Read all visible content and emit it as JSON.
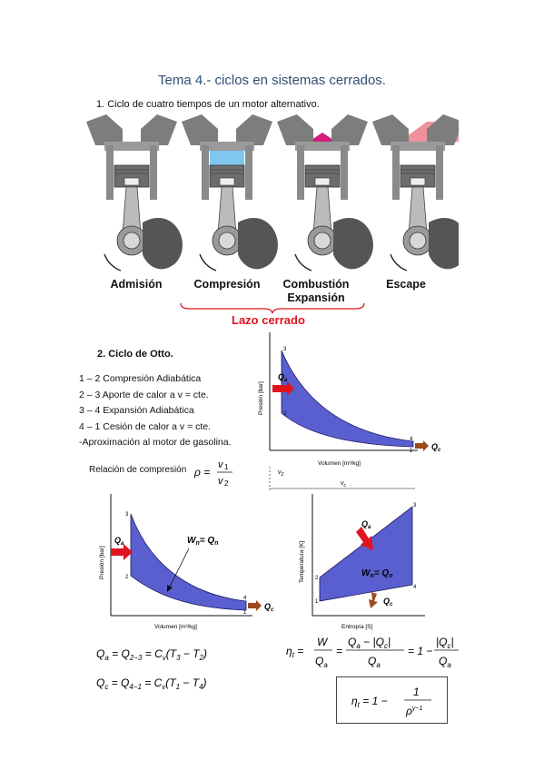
{
  "header": {
    "title": "Tema 4.- ciclos en sistemas cerrados."
  },
  "section1": {
    "heading": "1.   Ciclo de cuatro tiempos de un motor alternativo.",
    "stages": [
      {
        "label": "Admisión",
        "fill": "#cce6e0"
      },
      {
        "label": "Compresión",
        "fill": "#7ec7ef"
      },
      {
        "label": "Combustión",
        "label2": "Expansión",
        "fill": "#d01e7a"
      },
      {
        "label": "Escape",
        "fill": "#f0909c"
      }
    ],
    "loop_label": "Lazo cerrado"
  },
  "section2": {
    "heading": "2.   Ciclo de Otto.",
    "steps": [
      "1 – 2 Compresión Adiabática",
      "2 – 3 Aporte de calor a v = cte.",
      "3 – 4 Expansión Adiabática",
      "4 – 1 Cesión de calor a v = cte.",
      "-Aproximación al motor de gasolina."
    ],
    "compression_ratio_label": "Relación de compresión"
  },
  "pv_top": {
    "xlabel": "Volumen [m³/kg]",
    "ylabel": "Presión [bar]",
    "points": [
      "1",
      "2",
      "3",
      "4"
    ],
    "qa": "Q",
    "qa_sub": "a",
    "qc": "Q",
    "qc_sub": "c",
    "v2": "v",
    "v2_sub": "2",
    "v1": "v",
    "v1_sub": "c"
  },
  "pv_bottom": {
    "xlabel": "Volumen [m³/kg]",
    "ylabel": "Presión [bar]",
    "points": [
      "1",
      "2",
      "3",
      "4"
    ],
    "work_label": "W",
    "work_sub": "n",
    "work_eq": "= Q",
    "work_eq_sub": "n",
    "qa": "Q",
    "qa_sub": "a",
    "qc": "Q",
    "qc_sub": "c"
  },
  "ts_bottom": {
    "xlabel": "Entropía [S]",
    "ylabel": "Temperatura [K]",
    "points": [
      "1",
      "2",
      "3",
      "4"
    ],
    "work_label": "W",
    "work_sub": "n",
    "work_eq": "= Q",
    "work_eq_sub": "n",
    "qa": "Q",
    "qa_sub": "a",
    "qc": "Q",
    "qc_sub": "c"
  },
  "colors": {
    "cycle_fill": "#5a5fd0",
    "arrow_red": "#e0141c",
    "arrow_brown": "#9c4a1a",
    "title_blue": "#2e4f74"
  }
}
